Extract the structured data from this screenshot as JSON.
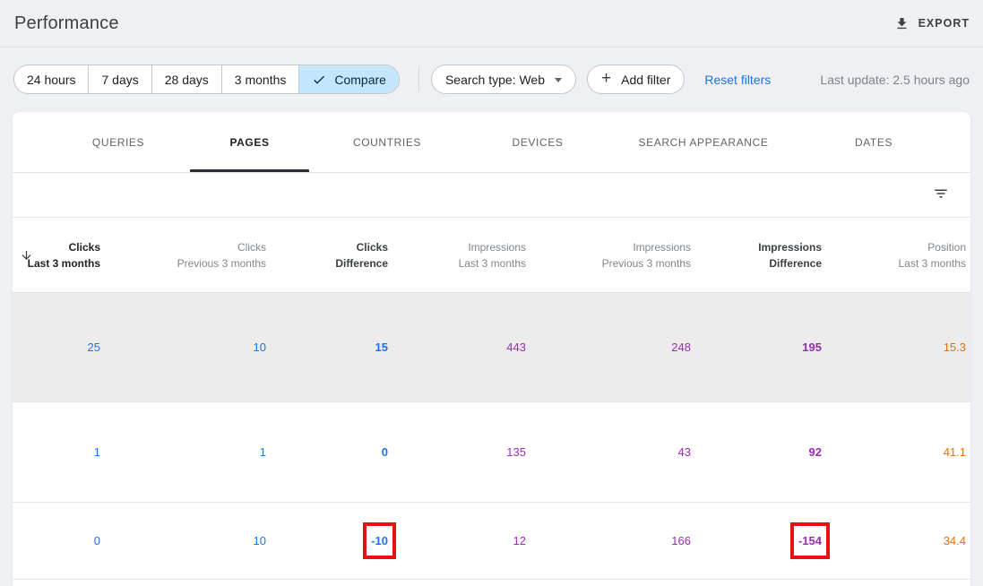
{
  "header": {
    "title": "Performance",
    "export_label": "EXPORT"
  },
  "filter_bar": {
    "ranges": [
      "24 hours",
      "7 days",
      "28 days",
      "3 months"
    ],
    "compare_label": "Compare",
    "search_type": "Search type: Web",
    "add_filter": "Add filter",
    "reset_filters": "Reset filters",
    "last_update": "Last update: 2.5 hours ago"
  },
  "tabs": {
    "items": [
      {
        "label": "QUERIES",
        "active": false
      },
      {
        "label": "PAGES",
        "active": true
      },
      {
        "label": "COUNTRIES",
        "active": false
      },
      {
        "label": "DEVICES",
        "active": false
      },
      {
        "label": "SEARCH APPEARANCE",
        "active": false
      },
      {
        "label": "DATES",
        "active": false
      }
    ]
  },
  "table": {
    "columns": [
      {
        "metric": "Clicks",
        "period": "Last 3 months",
        "group": "clicks",
        "emphasis": "primary",
        "sorted": true
      },
      {
        "metric": "Clicks",
        "period": "Previous 3 months",
        "group": "clicks",
        "emphasis": "muted",
        "sorted": false
      },
      {
        "metric": "Clicks",
        "period": "Difference",
        "group": "clicks",
        "emphasis": "diff",
        "sorted": false
      },
      {
        "metric": "Impressions",
        "period": "Last 3 months",
        "group": "impressions",
        "emphasis": "muted",
        "sorted": false
      },
      {
        "metric": "Impressions",
        "period": "Previous 3 months",
        "group": "impressions",
        "emphasis": "muted",
        "sorted": false
      },
      {
        "metric": "Impressions",
        "period": "Difference",
        "group": "impressions",
        "emphasis": "diff",
        "sorted": false
      },
      {
        "metric": "Position",
        "period": "Last 3 months",
        "group": "position",
        "emphasis": "muted",
        "sorted": false
      }
    ],
    "rows": [
      {
        "values": [
          "25",
          "10",
          "15",
          "443",
          "248",
          "195",
          "15.3"
        ],
        "highlighted": true,
        "annotated": []
      },
      {
        "values": [
          "1",
          "1",
          "0",
          "135",
          "43",
          "92",
          "41.1"
        ],
        "highlighted": false,
        "annotated": []
      },
      {
        "values": [
          "0",
          "10",
          "-10",
          "12",
          "166",
          "-154",
          "34.4"
        ],
        "highlighted": false,
        "annotated": [
          2,
          5
        ]
      }
    ]
  },
  "colors": {
    "clicks": "#1a73e8",
    "impressions": "#9c2bb5",
    "position": "#e8710a",
    "annotation": "#e81010",
    "link": "#1a73e8",
    "compare-bg": "#c2e7ff",
    "compare-text": "#06283d"
  }
}
